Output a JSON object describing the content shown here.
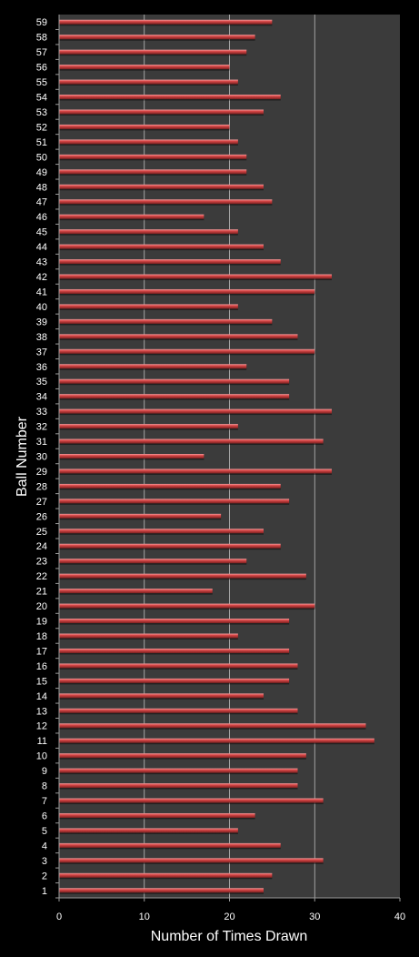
{
  "chart_data": {
    "type": "bar",
    "orientation": "horizontal",
    "title": "",
    "xlabel": "Number of Times Drawn",
    "ylabel": "Ball Number",
    "xlim": [
      0,
      40
    ],
    "x_ticks": [
      "0",
      "10",
      "20",
      "30",
      "40"
    ],
    "grid": true,
    "legend": "none",
    "categories": [
      "1",
      "2",
      "3",
      "4",
      "5",
      "6",
      "7",
      "8",
      "9",
      "10",
      "11",
      "12",
      "13",
      "14",
      "15",
      "16",
      "17",
      "18",
      "19",
      "20",
      "21",
      "22",
      "23",
      "24",
      "25",
      "26",
      "27",
      "28",
      "29",
      "30",
      "31",
      "32",
      "33",
      "34",
      "35",
      "36",
      "37",
      "38",
      "39",
      "40",
      "41",
      "42",
      "43",
      "44",
      "45",
      "46",
      "47",
      "48",
      "49",
      "50",
      "51",
      "52",
      "53",
      "54",
      "55",
      "56",
      "57",
      "58",
      "59"
    ],
    "values": [
      24,
      25,
      31,
      26,
      21,
      23,
      31,
      28,
      28,
      29,
      37,
      36,
      28,
      24,
      27,
      28,
      27,
      21,
      27,
      30,
      18,
      29,
      22,
      26,
      24,
      19,
      27,
      26,
      32,
      17,
      31,
      21,
      32,
      27,
      27,
      22,
      30,
      28,
      25,
      21,
      30,
      32,
      26,
      24,
      21,
      17,
      25,
      24,
      22,
      22,
      21,
      20,
      24,
      26,
      21,
      20,
      22,
      23,
      25
    ],
    "colors": {
      "background": "#000000",
      "plot_area": "#3b3b3b",
      "bar": "#d94848",
      "bar_highlight": "#f2a0a0",
      "bar_shadow": "#7a1f1f",
      "gridline": "#bdbdbd",
      "text": "#ffffff"
    }
  }
}
